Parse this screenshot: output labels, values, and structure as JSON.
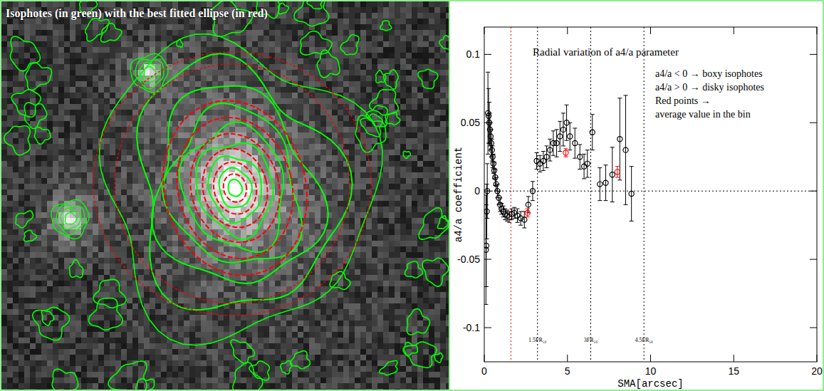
{
  "image_panel": {
    "title": "Isophotes (in green) with the best fitted ellipse (in red)"
  },
  "chart_data": {
    "type": "scatter",
    "title": "Radial variation of a4/a parameter",
    "x_label": "SMA[arcsec]",
    "y_label": "a4/a coefficient",
    "annotations": [
      "a4/a < 0 → boxy isophotes",
      "a4/a > 0 → disky isophotes",
      "Red points →",
      "average value in the bin"
    ],
    "xlim": [
      0,
      20
    ],
    "xticks": [
      0,
      5,
      10,
      15,
      20
    ],
    "ylim": [
      -0.125,
      0.12
    ],
    "yticks": [
      -0.1,
      -0.05,
      0,
      0.05,
      0.1
    ],
    "reference_lines": [
      {
        "y": 0,
        "color": "#000000",
        "line_style": "dotted"
      },
      {
        "x": 1.6,
        "color": "#ff0000",
        "line_style": "dotted"
      },
      {
        "x": 3.2,
        "label": "1.5FR₅₀",
        "color": "#000000",
        "line_style": "dotted"
      },
      {
        "x": 6.4,
        "label": "3FR₅₀",
        "color": "#000000",
        "line_style": "dotted"
      },
      {
        "x": 9.6,
        "label": "4.5FR₅₀",
        "color": "#000000",
        "line_style": "dotted"
      }
    ],
    "series": [
      {
        "color": "#000000",
        "marker": "circle",
        "x": [
          0.1,
          0.12,
          0.15,
          0.18,
          0.22,
          0.26,
          0.3,
          0.34,
          0.38,
          0.42,
          0.46,
          0.5,
          0.55,
          0.6,
          0.66,
          0.72,
          0.79,
          0.87,
          0.95,
          1.04,
          1.14,
          1.25,
          1.37,
          1.5,
          1.65,
          1.81,
          1.99,
          2.19,
          2.41,
          2.65,
          2.91,
          3.15,
          3.35,
          3.55,
          3.75,
          3.95,
          4.15,
          4.35,
          4.55,
          4.75,
          4.95,
          5.15,
          5.45,
          5.75,
          6.0,
          6.2,
          6.5,
          6.95,
          7.3,
          7.7,
          8.15,
          8.5,
          8.85
        ],
        "values": [
          -0.043,
          -0.04,
          -0.015,
          0.0,
          0.057,
          0.055,
          0.05,
          0.045,
          0.04,
          0.035,
          0.03,
          0.025,
          0.02,
          0.015,
          0.01,
          0.005,
          0.0,
          -0.005,
          -0.01,
          -0.013,
          -0.015,
          -0.017,
          -0.018,
          -0.019,
          -0.017,
          -0.016,
          -0.018,
          -0.02,
          -0.021,
          -0.01,
          0.0,
          0.022,
          0.02,
          0.022,
          0.025,
          0.03,
          0.035,
          0.035,
          0.04,
          0.045,
          0.05,
          0.04,
          0.035,
          0.025,
          0.018,
          0.02,
          0.043,
          0.005,
          0.006,
          0.012,
          0.038,
          0.03,
          -0.002
        ],
        "errors": [
          0.04,
          0.03,
          0.02,
          0.02,
          0.03,
          0.02,
          0.015,
          0.012,
          0.01,
          0.01,
          0.008,
          0.008,
          0.007,
          0.006,
          0.006,
          0.005,
          0.005,
          0.005,
          0.005,
          0.004,
          0.004,
          0.004,
          0.004,
          0.004,
          0.004,
          0.004,
          0.005,
          0.005,
          0.006,
          0.006,
          0.007,
          0.006,
          0.006,
          0.007,
          0.008,
          0.008,
          0.009,
          0.01,
          0.011,
          0.012,
          0.013,
          0.01,
          0.011,
          0.009,
          0.009,
          0.01,
          0.013,
          0.012,
          0.013,
          0.02,
          0.03,
          0.04,
          0.02
        ]
      },
      {
        "color": "#ff0000",
        "marker": "circle",
        "x": [
          2.6,
          4.9,
          8.0
        ],
        "values": [
          -0.016,
          0.028,
          0.014
        ],
        "errors": [
          0.003,
          0.003,
          0.004
        ]
      }
    ]
  }
}
